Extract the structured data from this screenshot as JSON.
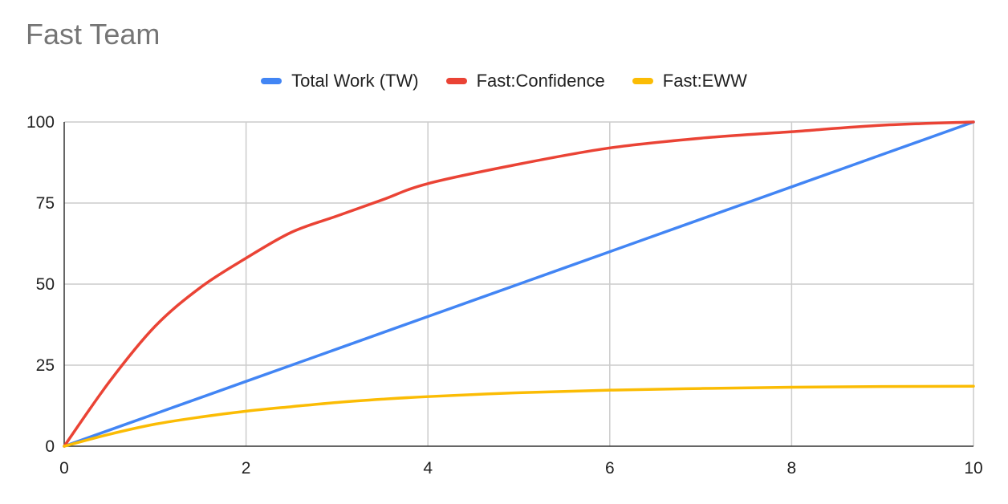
{
  "chart_data": {
    "type": "line",
    "title": "Fast Team",
    "xlabel": "",
    "ylabel": "",
    "xlim": [
      0,
      10
    ],
    "ylim": [
      0,
      100
    ],
    "x_ticks": [
      "0",
      "2",
      "4",
      "6",
      "8",
      "10"
    ],
    "y_ticks": [
      "0",
      "25",
      "50",
      "75",
      "100"
    ],
    "grid": true,
    "legend_position": "top",
    "series": [
      {
        "name": "Total Work (TW)",
        "color": "#4285F4",
        "x": [
          0,
          1,
          2,
          3,
          4,
          5,
          6,
          7,
          8,
          9,
          10
        ],
        "y": [
          0,
          10,
          20,
          30,
          40,
          50,
          60,
          70,
          80,
          90,
          100
        ]
      },
      {
        "name": "Fast:Confidence",
        "color": "#EA4335",
        "x": [
          0,
          0.5,
          1,
          1.5,
          2,
          2.5,
          3,
          3.5,
          4,
          5,
          6,
          7,
          8,
          9,
          10
        ],
        "y": [
          0,
          20,
          37,
          49,
          58,
          66,
          71,
          76,
          81,
          87,
          92,
          95,
          97,
          99,
          100
        ]
      },
      {
        "name": "Fast:EWW",
        "color": "#FBBC04",
        "x": [
          0,
          0.5,
          1,
          1.5,
          2,
          2.5,
          3,
          3.5,
          4,
          5,
          6,
          7,
          8,
          9,
          10
        ],
        "y": [
          0,
          3.7,
          6.8,
          9.0,
          10.8,
          12.2,
          13.5,
          14.5,
          15.3,
          16.5,
          17.3,
          17.8,
          18.2,
          18.4,
          18.5
        ]
      }
    ]
  }
}
